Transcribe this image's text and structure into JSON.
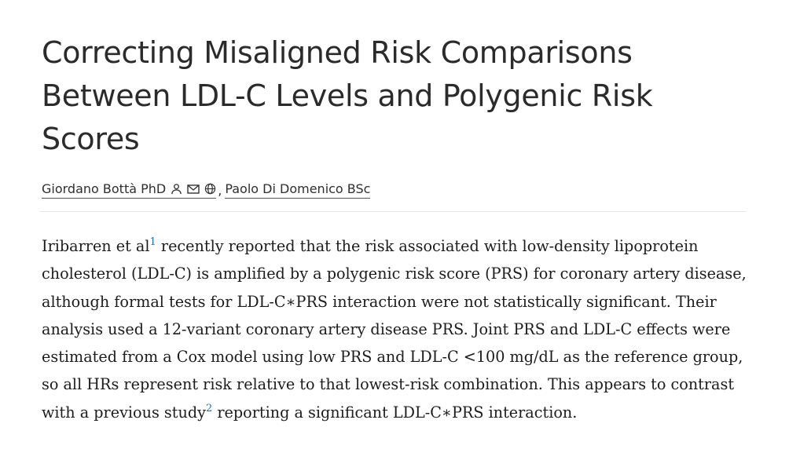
{
  "article": {
    "title_lines": [
      "Correcting Misaligned Risk Comparisons",
      "Between LDL-C Levels and Polygenic Risk",
      "Scores"
    ],
    "authors": [
      {
        "name": "Giordano Bottà PhD",
        "icons": [
          "person-icon",
          "email-icon",
          "globe-icon"
        ]
      },
      {
        "name": "Paolo Di Domenico BSc",
        "icons": []
      }
    ],
    "author_separator": ",",
    "body": {
      "seg1": "Iribarren et al",
      "ref1": "1",
      "seg2": " recently reported that the risk associated with low-density lipoprotein cholesterol (LDL-C) is amplified by a polygenic risk score (PRS) for coronary artery disease, although formal tests for LDL-C∗PRS interaction were not statistically significant. Their analysis used a 12-variant coronary artery disease PRS. Joint PRS and LDL-C effects were estimated from a Cox model using low PRS and LDL-C <100 mg/dL as the reference group, so all HRs represent risk relative to that lowest-risk combination. This appears to contrast with a previous study",
      "ref2": "2",
      "seg3": " reporting a significant LDL-C∗PRS interaction."
    }
  }
}
